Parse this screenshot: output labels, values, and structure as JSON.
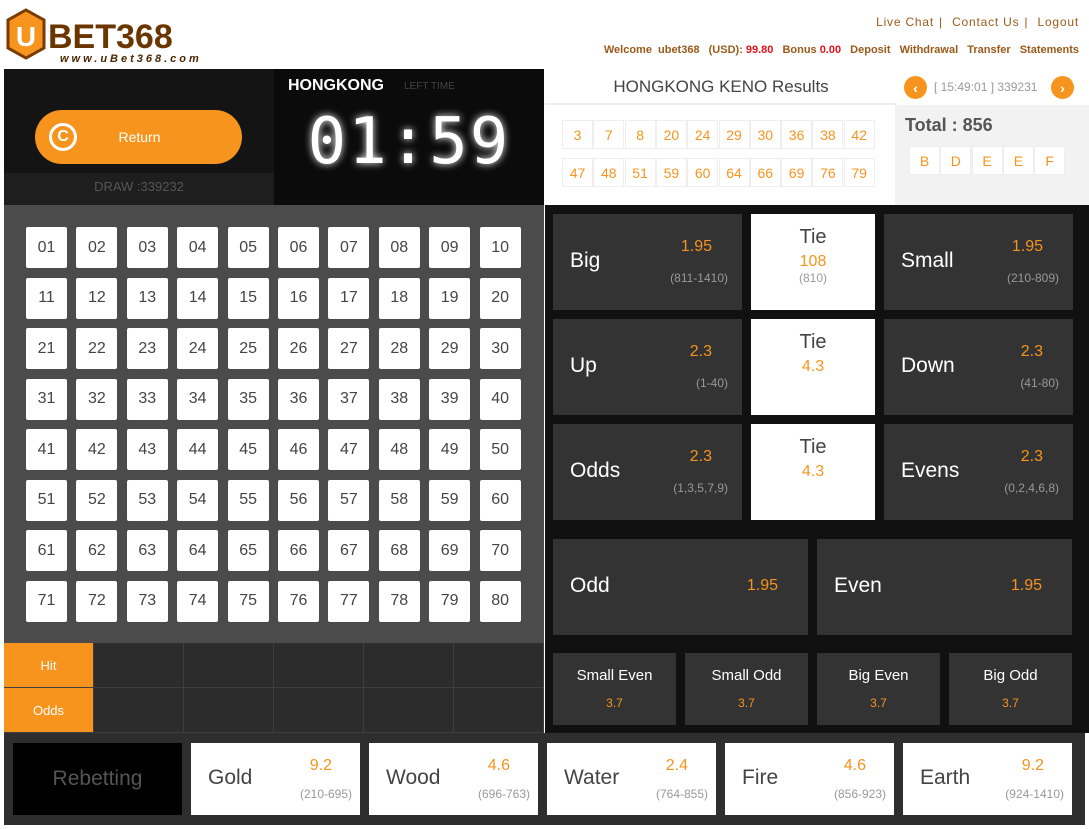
{
  "header": {
    "logo_text": "UBET368",
    "logo_sub": "www.uBet368.com",
    "links": [
      "Live Chat",
      "Contact Us",
      "Logout"
    ],
    "welcome": "Welcome",
    "username": "ubet368",
    "currency_label": "(USD):",
    "balance": "99.80",
    "bonus_label": "Bonus",
    "bonus": "0.00",
    "actions": [
      "Deposit",
      "Withdrawal",
      "Transfer",
      "Statements"
    ]
  },
  "left": {
    "return_label": "Return",
    "draw": "DRAW :339232",
    "city": "HONGKONG",
    "left_time_label": "LEFT TIME",
    "countdown": "01:59",
    "numbers": [
      "01",
      "02",
      "03",
      "04",
      "05",
      "06",
      "07",
      "08",
      "09",
      "10",
      "11",
      "12",
      "13",
      "14",
      "15",
      "16",
      "17",
      "18",
      "19",
      "20",
      "21",
      "22",
      "23",
      "24",
      "25",
      "26",
      "27",
      "28",
      "29",
      "30",
      "31",
      "32",
      "33",
      "34",
      "35",
      "36",
      "37",
      "38",
      "39",
      "40",
      "41",
      "42",
      "43",
      "44",
      "45",
      "46",
      "47",
      "48",
      "49",
      "50",
      "51",
      "52",
      "53",
      "54",
      "55",
      "56",
      "57",
      "58",
      "59",
      "60",
      "61",
      "62",
      "63",
      "64",
      "65",
      "66",
      "67",
      "68",
      "69",
      "70",
      "71",
      "72",
      "73",
      "74",
      "75",
      "76",
      "77",
      "78",
      "79",
      "80"
    ],
    "hit_label": "Hit",
    "odds_label": "Odds"
  },
  "results": {
    "title": "HONGKONG KENO Results",
    "draw_info": "[ 15:49:01 ] 339231",
    "numbers": [
      "3",
      "7",
      "8",
      "20",
      "24",
      "29",
      "30",
      "36",
      "38",
      "42",
      "47",
      "48",
      "51",
      "59",
      "60",
      "64",
      "66",
      "69",
      "76",
      "79"
    ],
    "total": "Total : 856",
    "letters": [
      "B",
      "D",
      "E",
      "E",
      "F"
    ]
  },
  "bets": {
    "rows": [
      {
        "left": {
          "name": "Big",
          "odds": "1.95",
          "range": "(811-1410)"
        },
        "tie": {
          "name": "Tie",
          "odds": "108",
          "range": "(810)"
        },
        "right": {
          "name": "Small",
          "odds": "1.95",
          "range": "(210-809)"
        }
      },
      {
        "left": {
          "name": "Up",
          "odds": "2.3",
          "range": "(1-40)"
        },
        "tie": {
          "name": "Tie",
          "odds": "4.3",
          "range": ""
        },
        "right": {
          "name": "Down",
          "odds": "2.3",
          "range": "(41-80)"
        }
      },
      {
        "left": {
          "name": "Odds",
          "odds": "2.3",
          "range": "(1,3,5,7,9)"
        },
        "tie": {
          "name": "Tie",
          "odds": "4.3",
          "range": ""
        },
        "right": {
          "name": "Evens",
          "odds": "2.3",
          "range": "(0,2,4,6,8)"
        }
      }
    ],
    "odd": {
      "name": "Odd",
      "odds": "1.95"
    },
    "even": {
      "name": "Even",
      "odds": "1.95"
    },
    "combos": [
      {
        "name": "Small Even",
        "odds": "3.7"
      },
      {
        "name": "Small Odd",
        "odds": "3.7"
      },
      {
        "name": "Big Even",
        "odds": "3.7"
      },
      {
        "name": "Big Odd",
        "odds": "3.7"
      }
    ]
  },
  "bottom": {
    "rebet_label": "Rebetting",
    "elements": [
      {
        "name": "Gold",
        "odds": "9.2",
        "range": "(210-695)"
      },
      {
        "name": "Wood",
        "odds": "4.6",
        "range": "(696-763)"
      },
      {
        "name": "Water",
        "odds": "2.4",
        "range": "(764-855)"
      },
      {
        "name": "Fire",
        "odds": "4.6",
        "range": "(856-923)"
      },
      {
        "name": "Earth",
        "odds": "9.2",
        "range": "(924-1410)"
      }
    ]
  },
  "colors": {
    "accent": "#f7941d",
    "balance": "#e8101a",
    "link": "#9a5a1a"
  }
}
